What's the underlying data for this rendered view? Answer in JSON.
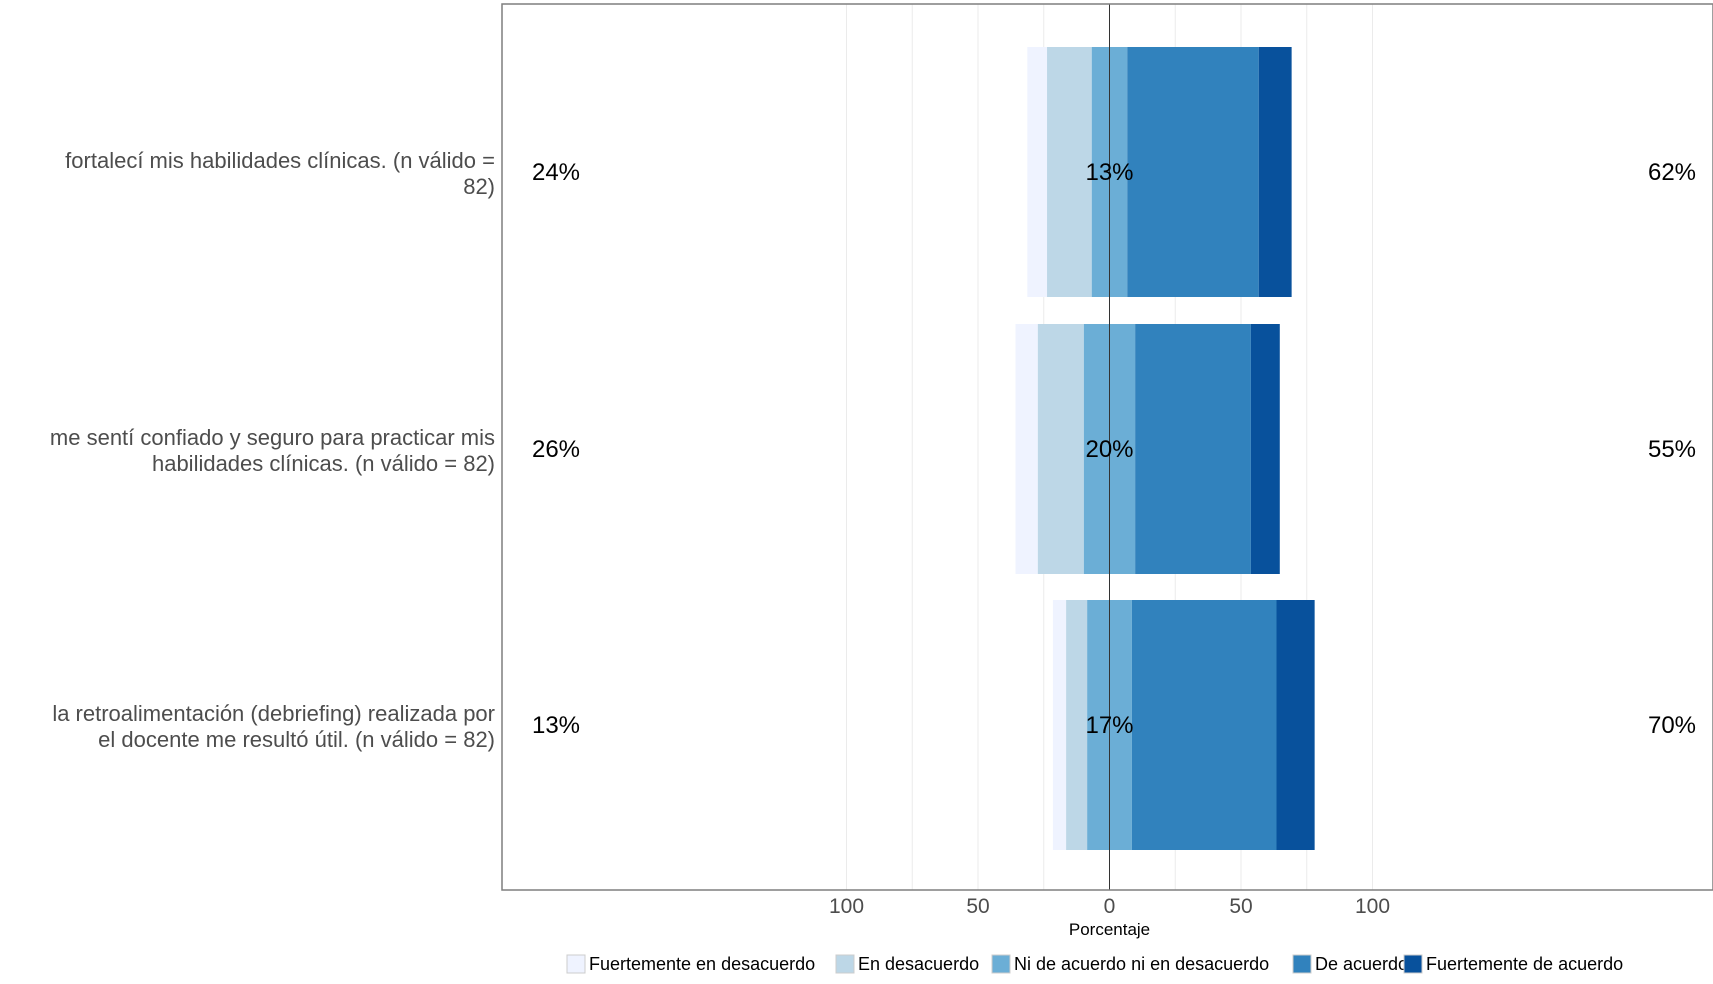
{
  "chart_data": {
    "type": "bar",
    "orientation": "horizontal-diverging-stacked",
    "xlabel": "Porcentaje",
    "xlim": [
      -115,
      115
    ],
    "x_ticks": [
      -100,
      -50,
      0,
      50,
      100
    ],
    "x_tick_labels": [
      "100",
      "50",
      "0",
      "50",
      "100"
    ],
    "grid": true,
    "legend_position": "bottom",
    "categories": [
      [
        "fortalecí mis habilidades clínicas. (n válido =",
        "82)"
      ],
      [
        "me sentí confiado y seguro para practicar mis",
        "habilidades clínicas. (n válido = 82)"
      ],
      [
        "la retroalimentación (debriefing) realizada por",
        "el docente me resultó útil. (n válido = 82)"
      ]
    ],
    "series": [
      {
        "name": "Fuertemente en desacuerdo",
        "color": "#eff3ff",
        "values": [
          7.5,
          8.5,
          5
        ]
      },
      {
        "name": "En desacuerdo",
        "color": "#bdd7e7",
        "values": [
          17,
          17.5,
          8
        ]
      },
      {
        "name": "Ni de acuerdo ni en desacuerdo",
        "color": "#6baed6",
        "values": [
          13.5,
          19.5,
          17
        ]
      },
      {
        "name": "De acuerdo",
        "color": "#3182bd",
        "values": [
          50,
          44,
          55
        ]
      },
      {
        "name": "Fuertemente de acuerdo",
        "color": "#08519c",
        "values": [
          12.5,
          11,
          14.5
        ]
      }
    ],
    "left_labels": [
      "24%",
      "26%",
      "13%"
    ],
    "center_labels": [
      "13%",
      "20%",
      "17%"
    ],
    "right_labels": [
      "62%",
      "55%",
      "70%"
    ]
  }
}
